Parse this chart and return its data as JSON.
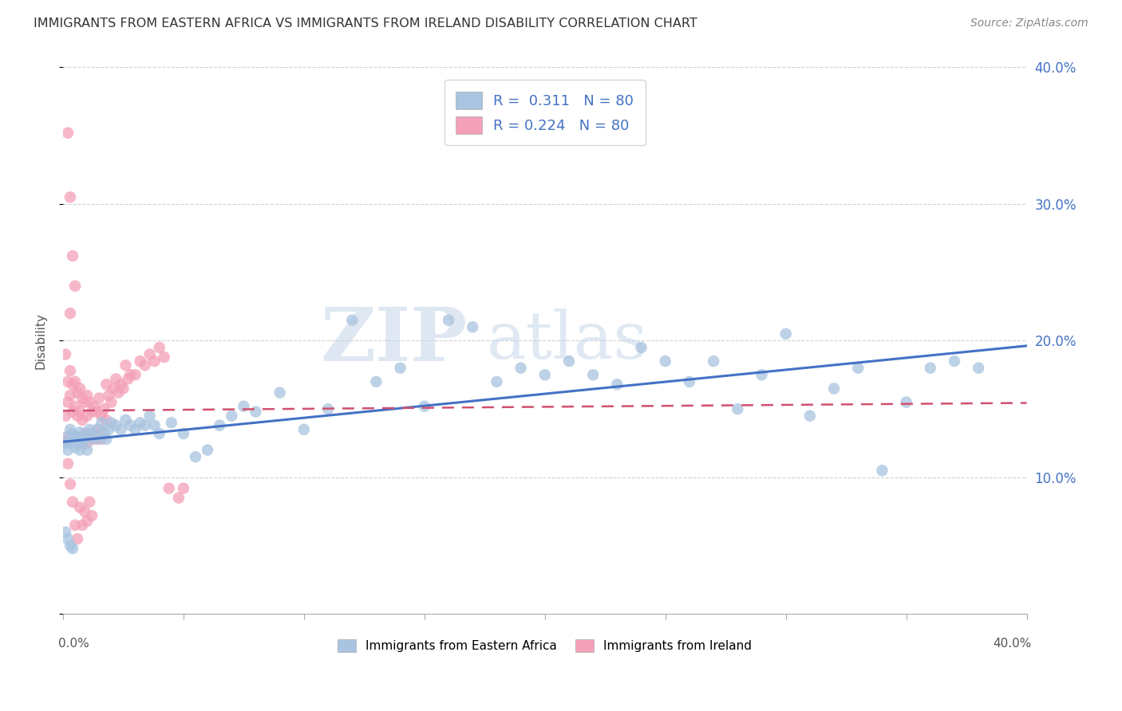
{
  "title": "IMMIGRANTS FROM EASTERN AFRICA VS IMMIGRANTS FROM IRELAND DISABILITY CORRELATION CHART",
  "source": "Source: ZipAtlas.com",
  "ylabel": "Disability",
  "xlim": [
    0.0,
    0.4
  ],
  "ylim": [
    0.0,
    0.4
  ],
  "legend_blue_r": "R =  0.311",
  "legend_blue_n": "N = 80",
  "legend_pink_r": "R = 0.224",
  "legend_pink_n": "N = 80",
  "watermark_zip": "ZIP",
  "watermark_atlas": "atlas",
  "blue_color": "#a8c4e0",
  "pink_color": "#f4a0b8",
  "blue_line_color": "#4472c4",
  "pink_line_color": "#d05070",
  "blue_scatter_x": [
    0.001,
    0.002,
    0.002,
    0.003,
    0.003,
    0.004,
    0.004,
    0.005,
    0.005,
    0.006,
    0.006,
    0.007,
    0.007,
    0.008,
    0.008,
    0.009,
    0.01,
    0.01,
    0.011,
    0.012,
    0.013,
    0.014,
    0.015,
    0.016,
    0.017,
    0.018,
    0.019,
    0.02,
    0.022,
    0.024,
    0.026,
    0.028,
    0.03,
    0.032,
    0.034,
    0.036,
    0.038,
    0.04,
    0.045,
    0.05,
    0.055,
    0.06,
    0.065,
    0.07,
    0.075,
    0.08,
    0.09,
    0.1,
    0.11,
    0.12,
    0.13,
    0.14,
    0.15,
    0.16,
    0.17,
    0.18,
    0.19,
    0.2,
    0.21,
    0.22,
    0.23,
    0.24,
    0.25,
    0.26,
    0.27,
    0.28,
    0.29,
    0.3,
    0.31,
    0.32,
    0.33,
    0.34,
    0.35,
    0.36,
    0.37,
    0.38,
    0.001,
    0.002,
    0.003,
    0.004
  ],
  "blue_scatter_y": [
    0.125,
    0.13,
    0.12,
    0.135,
    0.125,
    0.128,
    0.132,
    0.122,
    0.13,
    0.128,
    0.125,
    0.133,
    0.12,
    0.13,
    0.125,
    0.128,
    0.132,
    0.12,
    0.135,
    0.128,
    0.13,
    0.135,
    0.128,
    0.14,
    0.133,
    0.128,
    0.135,
    0.14,
    0.138,
    0.135,
    0.142,
    0.138,
    0.135,
    0.14,
    0.138,
    0.145,
    0.138,
    0.132,
    0.14,
    0.132,
    0.115,
    0.12,
    0.138,
    0.145,
    0.152,
    0.148,
    0.162,
    0.135,
    0.15,
    0.215,
    0.17,
    0.18,
    0.152,
    0.215,
    0.21,
    0.17,
    0.18,
    0.175,
    0.185,
    0.175,
    0.168,
    0.195,
    0.185,
    0.17,
    0.185,
    0.15,
    0.175,
    0.205,
    0.145,
    0.165,
    0.18,
    0.105,
    0.155,
    0.18,
    0.185,
    0.18,
    0.06,
    0.055,
    0.05,
    0.048
  ],
  "pink_scatter_x": [
    0.001,
    0.001,
    0.001,
    0.002,
    0.002,
    0.002,
    0.003,
    0.003,
    0.003,
    0.004,
    0.004,
    0.004,
    0.005,
    0.005,
    0.005,
    0.006,
    0.006,
    0.006,
    0.007,
    0.007,
    0.007,
    0.008,
    0.008,
    0.008,
    0.009,
    0.009,
    0.01,
    0.01,
    0.01,
    0.011,
    0.011,
    0.012,
    0.012,
    0.013,
    0.013,
    0.014,
    0.014,
    0.015,
    0.015,
    0.016,
    0.016,
    0.017,
    0.018,
    0.018,
    0.019,
    0.02,
    0.021,
    0.022,
    0.023,
    0.024,
    0.025,
    0.026,
    0.027,
    0.028,
    0.03,
    0.032,
    0.034,
    0.036,
    0.038,
    0.04,
    0.042,
    0.044,
    0.048,
    0.05,
    0.002,
    0.003,
    0.004,
    0.005,
    0.006,
    0.007,
    0.008,
    0.009,
    0.01,
    0.011,
    0.012,
    0.002,
    0.003,
    0.004,
    0.005,
    0.003
  ],
  "pink_scatter_y": [
    0.19,
    0.145,
    0.125,
    0.17,
    0.155,
    0.13,
    0.178,
    0.16,
    0.128,
    0.168,
    0.148,
    0.13,
    0.17,
    0.152,
    0.128,
    0.162,
    0.145,
    0.128,
    0.165,
    0.148,
    0.128,
    0.158,
    0.142,
    0.125,
    0.155,
    0.132,
    0.16,
    0.145,
    0.125,
    0.155,
    0.132,
    0.148,
    0.128,
    0.152,
    0.132,
    0.148,
    0.128,
    0.158,
    0.135,
    0.145,
    0.128,
    0.15,
    0.168,
    0.142,
    0.16,
    0.155,
    0.165,
    0.172,
    0.162,
    0.168,
    0.165,
    0.182,
    0.172,
    0.175,
    0.175,
    0.185,
    0.182,
    0.19,
    0.185,
    0.195,
    0.188,
    0.092,
    0.085,
    0.092,
    0.11,
    0.095,
    0.082,
    0.065,
    0.055,
    0.078,
    0.065,
    0.075,
    0.068,
    0.082,
    0.072,
    0.352,
    0.305,
    0.262,
    0.24,
    0.22
  ]
}
